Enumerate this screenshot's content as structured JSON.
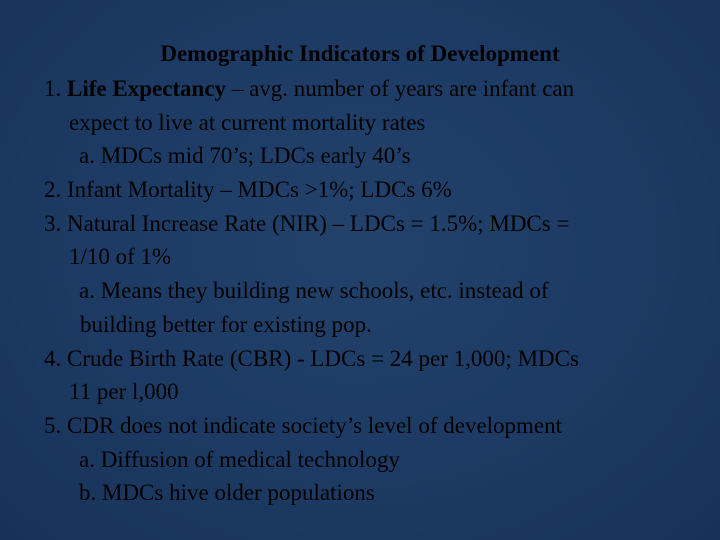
{
  "slide": {
    "title": "Demographic Indicators of Development",
    "items": [
      {
        "num": "1.",
        "bold": "Life Expectancy",
        "text_first": " – avg. number of years are infant can",
        "text_cont": "expect to live at current mortality rates",
        "subs": [
          {
            "text": "a. MDCs mid 70’s; LDCs early 40’s"
          }
        ]
      },
      {
        "num": "2.",
        "text_first": "Infant Mortality – MDCs >1%; LDCs 6%"
      },
      {
        "num": "3.",
        "text_first": "Natural Increase Rate (NIR) – LDCs = 1.5%; MDCs =",
        "text_cont": "1/10 of 1%",
        "subs": [
          {
            "text": "a. Means they building new schools, etc. instead of",
            "cont": "building better for existing pop."
          }
        ]
      },
      {
        "num": "4.",
        "text_first": "Crude Birth Rate (CBR) - LDCs = 24 per 1,000; MDCs",
        "text_cont": "11 per l,000"
      },
      {
        "num": "5.",
        "text_first": "CDR does not indicate society’s level of development",
        "subs": [
          {
            "text": "a. Diffusion of medical technology"
          },
          {
            "text": "b. MDCs hive older populations"
          }
        ]
      }
    ]
  }
}
